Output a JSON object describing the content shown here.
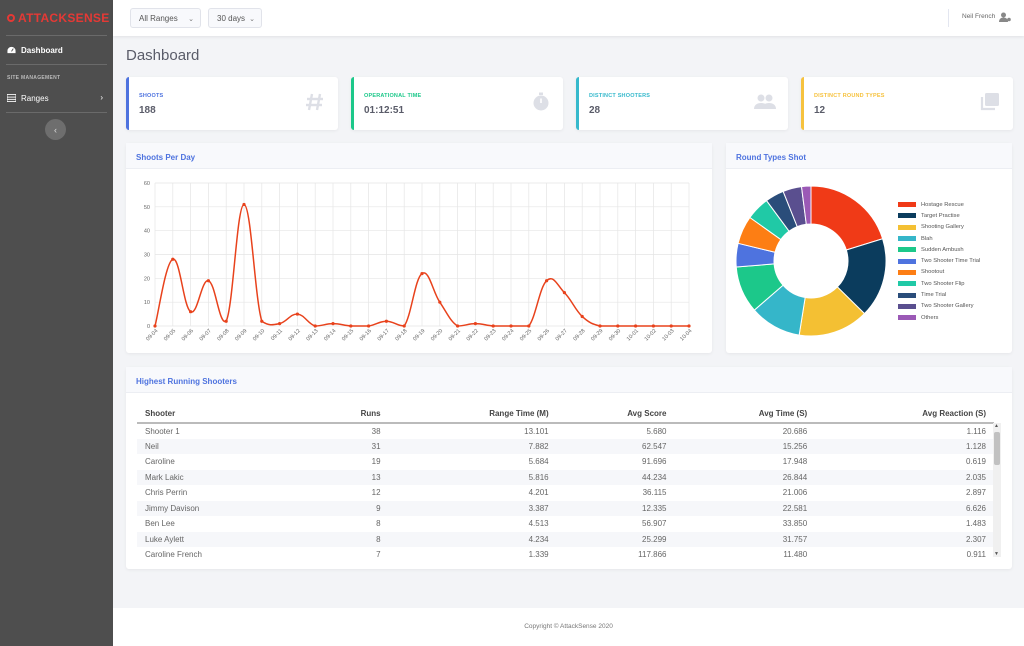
{
  "brand": {
    "prefix": "ATTACK",
    "suffix": "SENSE"
  },
  "sidebar": {
    "dashboard_label": "Dashboard",
    "section_heading": "SITE MANAGEMENT",
    "ranges_label": "Ranges"
  },
  "topbar": {
    "range_filter": "All Ranges",
    "period_filter": "30 days",
    "user_name": "Neil French"
  },
  "page_title": "Dashboard",
  "stats": [
    {
      "label": "SHOOTS",
      "value": "188",
      "color": "#4e73df",
      "icon": "hash-icon"
    },
    {
      "label": "OPERATIONAL TIME",
      "value": "01:12:51",
      "color": "#1cc88a",
      "icon": "stopwatch-icon"
    },
    {
      "label": "DISTINCT SHOOTERS",
      "value": "28",
      "color": "#36b9cc",
      "icon": "users-icon"
    },
    {
      "label": "DISTINCT ROUND TYPES",
      "value": "12",
      "color": "#f6c23e",
      "icon": "copy-icon"
    }
  ],
  "shoots_panel": {
    "title": "Shoots Per Day"
  },
  "round_panel": {
    "title": "Round Types Shot"
  },
  "shooters_panel": {
    "title": "Highest Running Shooters"
  },
  "table": {
    "headers": [
      "Shooter",
      "Runs",
      "Range Time (M)",
      "Avg Score",
      "Avg Time (S)",
      "Avg Reaction (S)"
    ],
    "rows": [
      [
        "Shooter 1",
        "38",
        "13.101",
        "5.680",
        "20.686",
        "1.116"
      ],
      [
        "Neil",
        "31",
        "7.882",
        "62.547",
        "15.256",
        "1.128"
      ],
      [
        "Caroline",
        "19",
        "5.684",
        "91.696",
        "17.948",
        "0.619"
      ],
      [
        "Mark Lakic",
        "13",
        "5.816",
        "44.234",
        "26.844",
        "2.035"
      ],
      [
        "Chris Perrin",
        "12",
        "4.201",
        "36.115",
        "21.006",
        "2.897"
      ],
      [
        "Jimmy Davison",
        "9",
        "3.387",
        "12.335",
        "22.581",
        "6.626"
      ],
      [
        "Ben Lee",
        "8",
        "4.513",
        "56.907",
        "33.850",
        "1.483"
      ],
      [
        "Luke Aylett",
        "8",
        "4.234",
        "25.299",
        "31.757",
        "2.307"
      ],
      [
        "Caroline French",
        "7",
        "1.339",
        "117.866",
        "11.480",
        "0.911"
      ]
    ]
  },
  "footer": "Copyright © AttackSense 2020",
  "chart_data": [
    {
      "type": "line",
      "title": "Shoots Per Day",
      "x": [
        "09-04",
        "09-05",
        "09-06",
        "09-07",
        "09-08",
        "09-09",
        "09-10",
        "09-11",
        "09-12",
        "09-13",
        "09-14",
        "09-15",
        "09-16",
        "09-17",
        "09-18",
        "09-19",
        "09-20",
        "09-21",
        "09-22",
        "09-23",
        "09-24",
        "09-25",
        "09-26",
        "09-27",
        "09-28",
        "09-29",
        "09-30",
        "10-01",
        "10-02",
        "10-03",
        "10-04"
      ],
      "series": [
        {
          "values": [
            0,
            28,
            6,
            19,
            2,
            51,
            2,
            1,
            5,
            0,
            1,
            0,
            0,
            2,
            0,
            22,
            10,
            0,
            1,
            0,
            0,
            0,
            19,
            14,
            4,
            0,
            0,
            0,
            0,
            0,
            0
          ],
          "color": "#e8421c"
        }
      ],
      "ylim": [
        0,
        60
      ],
      "yticks": [
        0,
        10,
        20,
        30,
        40,
        50,
        60
      ],
      "grid": true
    },
    {
      "type": "pie",
      "title": "Round Types Shot",
      "labels": [
        "Hostage Rescue",
        "Target Practise",
        "Shooting Gallery",
        "Blah",
        "Sudden Ambush",
        "Two Shooter Time Trial",
        "Shootout",
        "Two Shooter Flip",
        "Time Trial",
        "Two Shooter Gallery",
        "Others"
      ],
      "values": [
        20,
        17,
        15,
        11,
        10,
        5,
        6,
        5,
        4,
        4,
        2
      ],
      "colors": [
        "#f03a17",
        "#0b3c5d",
        "#f4c033",
        "#35b6c9",
        "#1cc88a",
        "#4e73df",
        "#fd7e14",
        "#20c9a6",
        "#2a4d7a",
        "#5a4f8f",
        "#9b59b6"
      ],
      "donut": true,
      "legend": "right"
    }
  ]
}
